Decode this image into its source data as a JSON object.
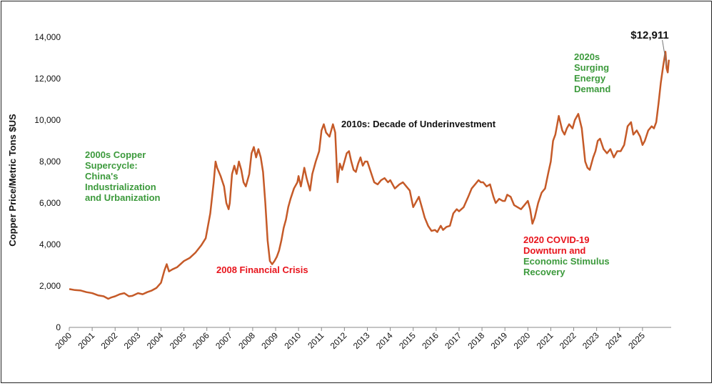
{
  "chart_data": {
    "type": "line",
    "title": "",
    "xlabel": "",
    "ylabel": "Copper Price/Metric Tons $US",
    "xlim": [
      2000,
      2025.75
    ],
    "ylim": [
      0,
      14000
    ],
    "grid": false,
    "line_color": "#c55a28",
    "x_ticks": [
      "2000",
      "2001",
      "2002",
      "2003",
      "2004",
      "2005",
      "2006",
      "2007",
      "2008",
      "2009",
      "2010",
      "2011",
      "2012",
      "2013",
      "2014",
      "2015",
      "2016",
      "2017",
      "2018",
      "2019",
      "2020",
      "2021",
      "2022",
      "2023",
      "2024",
      "2025"
    ],
    "y_ticks": [
      "0",
      "2,000",
      "4,000",
      "6,000",
      "8,000",
      "10,000",
      "12,000",
      "14,000"
    ],
    "series": [
      {
        "values": [
          [
            2000.0,
            1850
          ],
          [
            2000.25,
            1800
          ],
          [
            2000.5,
            1780
          ],
          [
            2000.75,
            1700
          ],
          [
            2001.0,
            1650
          ],
          [
            2001.25,
            1550
          ],
          [
            2001.5,
            1500
          ],
          [
            2001.7,
            1380
          ],
          [
            2001.85,
            1450
          ],
          [
            2002.0,
            1500
          ],
          [
            2002.2,
            1600
          ],
          [
            2002.4,
            1650
          ],
          [
            2002.6,
            1500
          ],
          [
            2002.75,
            1520
          ],
          [
            2003.0,
            1650
          ],
          [
            2003.2,
            1600
          ],
          [
            2003.4,
            1700
          ],
          [
            2003.6,
            1780
          ],
          [
            2003.8,
            1900
          ],
          [
            2004.0,
            2150
          ],
          [
            2004.15,
            2750
          ],
          [
            2004.25,
            3050
          ],
          [
            2004.35,
            2700
          ],
          [
            2004.5,
            2800
          ],
          [
            2004.7,
            2900
          ],
          [
            2004.9,
            3100
          ],
          [
            2005.0,
            3200
          ],
          [
            2005.25,
            3350
          ],
          [
            2005.5,
            3600
          ],
          [
            2005.75,
            3950
          ],
          [
            2005.95,
            4300
          ],
          [
            2006.0,
            4600
          ],
          [
            2006.15,
            5500
          ],
          [
            2006.3,
            7000
          ],
          [
            2006.38,
            8000
          ],
          [
            2006.45,
            7700
          ],
          [
            2006.6,
            7300
          ],
          [
            2006.75,
            6800
          ],
          [
            2006.85,
            6000
          ],
          [
            2006.95,
            5700
          ],
          [
            2007.0,
            6000
          ],
          [
            2007.1,
            7400
          ],
          [
            2007.2,
            7800
          ],
          [
            2007.3,
            7400
          ],
          [
            2007.4,
            8000
          ],
          [
            2007.5,
            7600
          ],
          [
            2007.6,
            7000
          ],
          [
            2007.7,
            6800
          ],
          [
            2007.85,
            7400
          ],
          [
            2007.95,
            8400
          ],
          [
            2008.05,
            8700
          ],
          [
            2008.15,
            8200
          ],
          [
            2008.25,
            8600
          ],
          [
            2008.35,
            8200
          ],
          [
            2008.45,
            7500
          ],
          [
            2008.55,
            6000
          ],
          [
            2008.65,
            4200
          ],
          [
            2008.75,
            3200
          ],
          [
            2008.85,
            3050
          ],
          [
            2008.95,
            3200
          ],
          [
            2009.05,
            3400
          ],
          [
            2009.15,
            3700
          ],
          [
            2009.25,
            4200
          ],
          [
            2009.35,
            4800
          ],
          [
            2009.45,
            5200
          ],
          [
            2009.55,
            5800
          ],
          [
            2009.65,
            6200
          ],
          [
            2009.8,
            6700
          ],
          [
            2009.95,
            7000
          ],
          [
            2010.0,
            7300
          ],
          [
            2010.1,
            6800
          ],
          [
            2010.25,
            7700
          ],
          [
            2010.35,
            7200
          ],
          [
            2010.5,
            6600
          ],
          [
            2010.6,
            7400
          ],
          [
            2010.75,
            8000
          ],
          [
            2010.9,
            8500
          ],
          [
            2011.0,
            9500
          ],
          [
            2011.1,
            9800
          ],
          [
            2011.2,
            9400
          ],
          [
            2011.35,
            9200
          ],
          [
            2011.5,
            9800
          ],
          [
            2011.6,
            9400
          ],
          [
            2011.7,
            7000
          ],
          [
            2011.8,
            7900
          ],
          [
            2011.9,
            7600
          ],
          [
            2012.0,
            8000
          ],
          [
            2012.1,
            8400
          ],
          [
            2012.2,
            8500
          ],
          [
            2012.3,
            8000
          ],
          [
            2012.4,
            7600
          ],
          [
            2012.5,
            7500
          ],
          [
            2012.6,
            7900
          ],
          [
            2012.7,
            8200
          ],
          [
            2012.8,
            7800
          ],
          [
            2012.9,
            8000
          ],
          [
            2013.0,
            8000
          ],
          [
            2013.15,
            7500
          ],
          [
            2013.3,
            7000
          ],
          [
            2013.45,
            6900
          ],
          [
            2013.6,
            7100
          ],
          [
            2013.75,
            7200
          ],
          [
            2013.9,
            7000
          ],
          [
            2014.0,
            7100
          ],
          [
            2014.2,
            6700
          ],
          [
            2014.4,
            6900
          ],
          [
            2014.55,
            7000
          ],
          [
            2014.7,
            6800
          ],
          [
            2014.85,
            6600
          ],
          [
            2015.0,
            5800
          ],
          [
            2015.1,
            6000
          ],
          [
            2015.25,
            6300
          ],
          [
            2015.4,
            5700
          ],
          [
            2015.5,
            5300
          ],
          [
            2015.65,
            4900
          ],
          [
            2015.8,
            4650
          ],
          [
            2015.95,
            4700
          ],
          [
            2016.05,
            4600
          ],
          [
            2016.2,
            4900
          ],
          [
            2016.3,
            4700
          ],
          [
            2016.45,
            4850
          ],
          [
            2016.6,
            4900
          ],
          [
            2016.75,
            5500
          ],
          [
            2016.9,
            5700
          ],
          [
            2017.0,
            5600
          ],
          [
            2017.2,
            5800
          ],
          [
            2017.4,
            6300
          ],
          [
            2017.55,
            6700
          ],
          [
            2017.7,
            6900
          ],
          [
            2017.85,
            7100
          ],
          [
            2017.95,
            7000
          ],
          [
            2018.05,
            7000
          ],
          [
            2018.2,
            6800
          ],
          [
            2018.35,
            6900
          ],
          [
            2018.5,
            6300
          ],
          [
            2018.6,
            6000
          ],
          [
            2018.75,
            6200
          ],
          [
            2018.9,
            6100
          ],
          [
            2019.0,
            6100
          ],
          [
            2019.1,
            6400
          ],
          [
            2019.25,
            6300
          ],
          [
            2019.4,
            5900
          ],
          [
            2019.55,
            5800
          ],
          [
            2019.7,
            5700
          ],
          [
            2019.85,
            5900
          ],
          [
            2020.0,
            6100
          ],
          [
            2020.1,
            5700
          ],
          [
            2020.2,
            5000
          ],
          [
            2020.3,
            5300
          ],
          [
            2020.45,
            6000
          ],
          [
            2020.6,
            6500
          ],
          [
            2020.75,
            6700
          ],
          [
            2020.9,
            7500
          ],
          [
            2021.0,
            8000
          ],
          [
            2021.1,
            9000
          ],
          [
            2021.2,
            9300
          ],
          [
            2021.35,
            10200
          ],
          [
            2021.5,
            9500
          ],
          [
            2021.6,
            9300
          ],
          [
            2021.7,
            9600
          ],
          [
            2021.8,
            9800
          ],
          [
            2021.95,
            9600
          ],
          [
            2022.05,
            10000
          ],
          [
            2022.2,
            10300
          ],
          [
            2022.35,
            9600
          ],
          [
            2022.5,
            8000
          ],
          [
            2022.6,
            7700
          ],
          [
            2022.7,
            7600
          ],
          [
            2022.85,
            8200
          ],
          [
            2022.95,
            8500
          ],
          [
            2023.05,
            9000
          ],
          [
            2023.15,
            9100
          ],
          [
            2023.3,
            8600
          ],
          [
            2023.45,
            8400
          ],
          [
            2023.6,
            8600
          ],
          [
            2023.75,
            8200
          ],
          [
            2023.9,
            8500
          ],
          [
            2024.05,
            8500
          ],
          [
            2024.2,
            8800
          ],
          [
            2024.35,
            9700
          ],
          [
            2024.5,
            9900
          ],
          [
            2024.6,
            9300
          ],
          [
            2024.75,
            9500
          ],
          [
            2024.9,
            9200
          ],
          [
            2025.0,
            8800
          ],
          [
            2025.1,
            9000
          ],
          [
            2025.25,
            9500
          ],
          [
            2025.4,
            9700
          ],
          [
            2025.5,
            9600
          ],
          [
            2025.6,
            9900
          ],
          [
            2025.7,
            10800
          ],
          [
            2025.8,
            11800
          ],
          [
            2025.9,
            12600
          ],
          [
            2026.0,
            13300
          ],
          [
            2026.05,
            12500
          ],
          [
            2026.1,
            12300
          ],
          [
            2026.15,
            12911
          ]
        ]
      }
    ],
    "annotations": {
      "price_label": "$12,911",
      "supercycle": [
        "2000s Copper",
        "Supercycle:",
        "China's",
        "Industrialization",
        "and Urbanization"
      ],
      "financial_crisis": "2008 Financial Crisis",
      "underinvestment": "2010s: Decade of Underinvestment",
      "covid_red": [
        "2020 COVID-19",
        "Downturn and"
      ],
      "covid_green": [
        "Economic Stimulus",
        "Recovery"
      ],
      "energy": [
        "2020s",
        "Surging",
        "Energy",
        "Demand"
      ]
    },
    "colors": {
      "green": "#3c9a3c",
      "red": "#e8141c",
      "black": "#111111"
    }
  }
}
